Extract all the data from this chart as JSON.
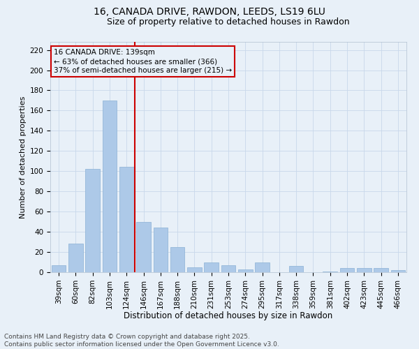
{
  "title_line1": "16, CANADA DRIVE, RAWDON, LEEDS, LS19 6LU",
  "title_line2": "Size of property relative to detached houses in Rawdon",
  "xlabel": "Distribution of detached houses by size in Rawdon",
  "ylabel": "Number of detached properties",
  "categories": [
    "39sqm",
    "60sqm",
    "82sqm",
    "103sqm",
    "124sqm",
    "146sqm",
    "167sqm",
    "188sqm",
    "210sqm",
    "231sqm",
    "253sqm",
    "274sqm",
    "295sqm",
    "317sqm",
    "338sqm",
    "359sqm",
    "381sqm",
    "402sqm",
    "423sqm",
    "445sqm",
    "466sqm"
  ],
  "values": [
    7,
    28,
    102,
    170,
    104,
    50,
    44,
    25,
    5,
    10,
    7,
    3,
    10,
    0,
    6,
    0,
    1,
    4,
    4,
    4,
    2
  ],
  "bar_color": "#adc9e8",
  "bar_edge_color": "#8ab0d4",
  "grid_color": "#c8d8ea",
  "background_color": "#e8f0f8",
  "vline_x_index": 4.5,
  "vline_color": "#cc0000",
  "annotation_line1": "16 CANADA DRIVE: 139sqm",
  "annotation_line2": "← 63% of detached houses are smaller (366)",
  "annotation_line3": "37% of semi-detached houses are larger (215) →",
  "annotation_box_color": "#cc0000",
  "ylim_max": 228,
  "yticks": [
    0,
    20,
    40,
    60,
    80,
    100,
    120,
    140,
    160,
    180,
    200,
    220
  ],
  "footer_line1": "Contains HM Land Registry data © Crown copyright and database right 2025.",
  "footer_line2": "Contains public sector information licensed under the Open Government Licence v3.0.",
  "title_fontsize": 10,
  "subtitle_fontsize": 9,
  "axis_label_fontsize": 8.5,
  "tick_fontsize": 7.5,
  "annotation_fontsize": 7.5,
  "footer_fontsize": 6.5,
  "ylabel_fontsize": 8
}
